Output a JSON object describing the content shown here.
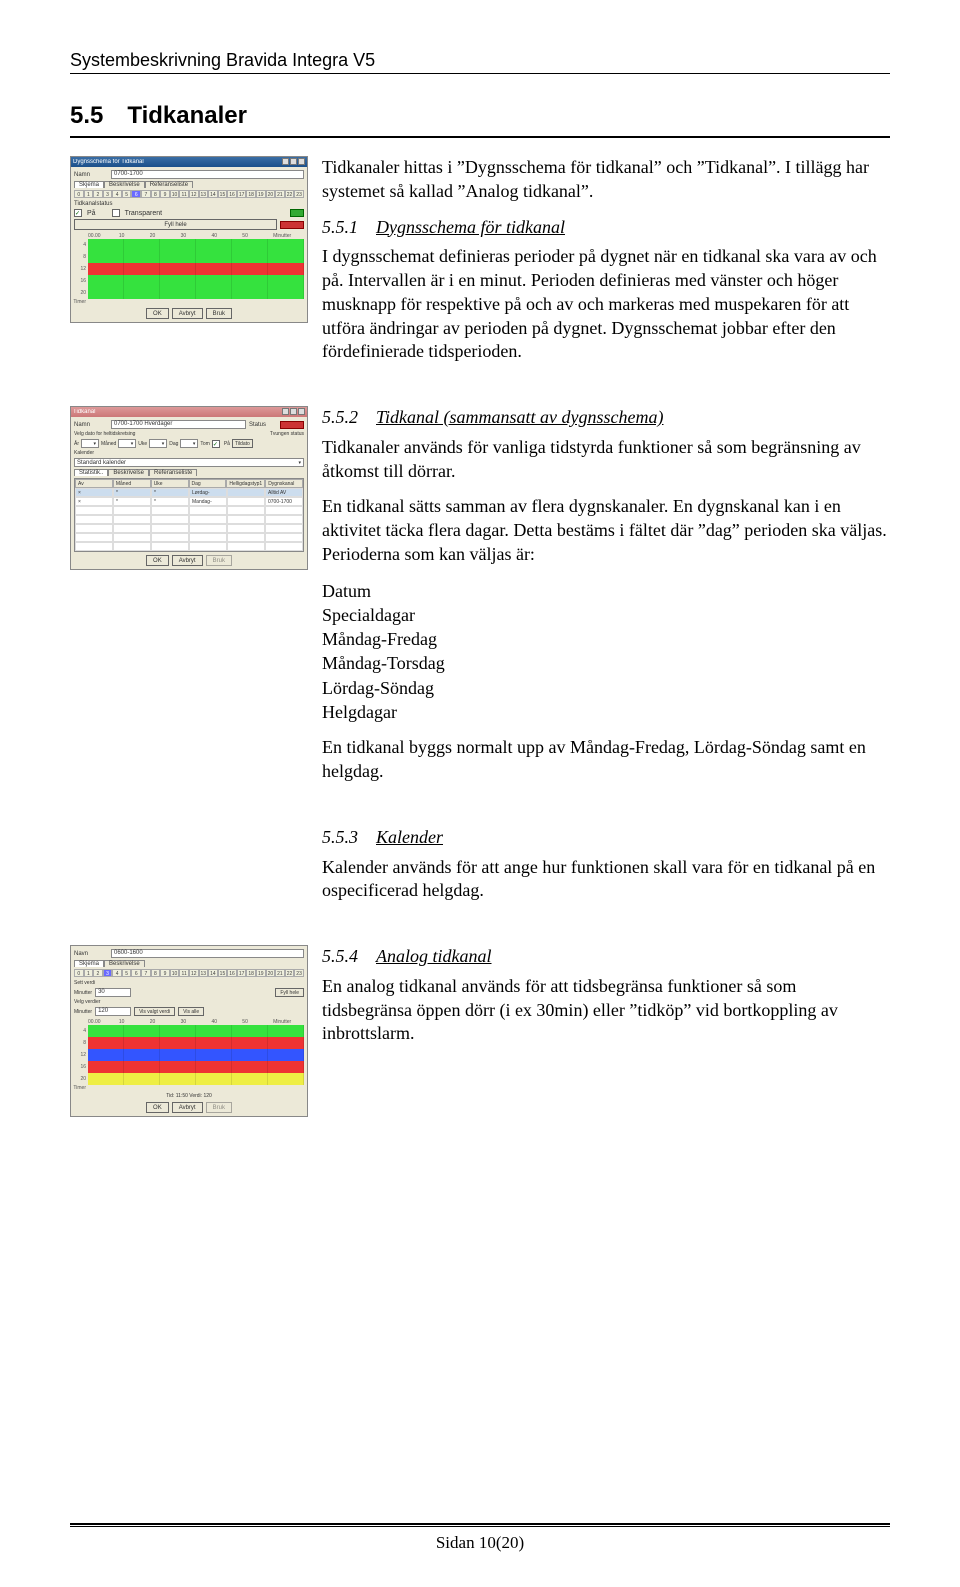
{
  "doc_header": "Systembeskrivning Bravida Integra V5",
  "page_footer": "Sidan 10(20)",
  "section": {
    "num": "5.5",
    "title": "Tidkanaler"
  },
  "intro_p1": "Tidkanaler hittas i ”Dygnsschema för tidkanal” och ”Tidkanal”. I tillägg har systemet så kallad ”Analog tidkanal”.",
  "s551": {
    "num": "5.5.1",
    "title": "Dygnsschema för tidkanal",
    "p1": "I dygnsschemat definieras perioder på dygnet när en tidkanal ska vara av och på. Intervallen är i en minut. Perioden definieras med vänster och höger musknapp för respektive på och av och markeras med muspekaren för att utföra ändringar av perioden på dygnet. Dygnsschemat jobbar efter den fördefinierade tidsperioden."
  },
  "s552": {
    "num": "5.5.2",
    "title": "Tidkanal (sammansatt av dygnsschema)",
    "p1": "Tidkanaler används för vanliga tidstyrda funktioner så som begränsning av åtkomst till dörrar.",
    "p2": "En tidkanal sätts samman av flera dygnskanaler. En dygnskanal kan i en aktivitet täcka flera dagar. Detta bestäms i fältet där ”dag” perioden ska väljas. Perioderna som kan väljas är:",
    "list": [
      "Datum",
      "Specialdagar",
      "Måndag-Fredag",
      "Måndag-Torsdag",
      "Lördag-Söndag",
      "Helgdagar"
    ],
    "p3": "En tidkanal byggs normalt upp av Måndag-Fredag, Lördag-Söndag samt en helgdag."
  },
  "s553": {
    "num": "5.5.3",
    "title": "Kalender",
    "p1": "Kalender används för att ange hur funktionen skall vara för en tidkanal på en ospecificerad helgdag."
  },
  "s554": {
    "num": "5.5.4",
    "title": "Analog tidkanal",
    "p1": "En analog tidkanal används för att tidsbegränsa funktioner så som tidsbegränsa öppen dörr (i ex 30min) eller ”tidköp” vid bortkoppling av inbrottslarm."
  },
  "thumb1": {
    "window_title": "Dygnsschema för Tidkanal",
    "namn_lbl": "Namn",
    "namn_val": "0700-1700",
    "tab_skjema": "Skjema",
    "tab_besk": "Beskrivelse",
    "tab_ref": "Referanseliste",
    "hours": [
      "0",
      "1",
      "2",
      "3",
      "4",
      "5",
      "6",
      "7",
      "8",
      "9",
      "10",
      "11",
      "12",
      "13",
      "14",
      "15",
      "16",
      "17",
      "18",
      "19",
      "20",
      "21",
      "22",
      "23"
    ],
    "pa": "På",
    "transparent": "Transparent",
    "fyll": "Fyll hele",
    "axis": [
      "00.00",
      "10",
      "20",
      "30",
      "40",
      "50",
      "Minutter"
    ],
    "rows": [
      "4",
      "8",
      "12",
      "16",
      "20"
    ],
    "row_colors": [
      "cg-green",
      "cg-green",
      "cg-red",
      "cg-green",
      "cg-green"
    ],
    "ok": "OK",
    "avbryt": "Avbryt",
    "bruk": "Bruk"
  },
  "thumb2": {
    "window_title": "Tidkanal",
    "namn_lbl": "Namn",
    "namn_val": "0700-1700 Hverdager",
    "status_lbl": "Status",
    "velg": "Velg dato for heltidskretsing",
    "tvungen": "Tvungen status",
    "ar": "År",
    "maned": "Måned",
    "uke": "Uke",
    "dag": "Dag",
    "tom": "Tom",
    "tildato": "Tildato",
    "kalender": "Kalender",
    "standard": "Standard kalender",
    "tab_stat": "Statistik..",
    "tab_besk": "Beskrivelse",
    "tab_ref": "Referanseliste",
    "hdrs": [
      "Av",
      "Måned",
      "Uke",
      "Dag",
      "Helligdagstyp1",
      "Dygnskanal ID"
    ],
    "r1": [
      "×",
      "*",
      "*",
      "Lørdag-Søndag",
      "",
      "Alltid AV"
    ],
    "r2": [
      "×",
      "*",
      "*",
      "Mandag-Fredag",
      "",
      "0700-1700"
    ],
    "ok": "OK",
    "avbryt": "Avbryt"
  },
  "thumb3": {
    "namn_lbl": "Navn",
    "namn_val": "0600-1600",
    "tab_skjema": "Skjema",
    "tab_besk": "Beskrivelse",
    "hours": [
      "0",
      "1",
      "2",
      "3",
      "4",
      "5",
      "6",
      "7",
      "8",
      "9",
      "10",
      "11",
      "12",
      "13",
      "14",
      "15",
      "16",
      "17",
      "18",
      "19",
      "20",
      "21",
      "22",
      "23"
    ],
    "sett_lbl": "Sett verdi",
    "min1_lbl": "Minutter",
    "min1_val": "30",
    "fyll": "Fyll hele",
    "velg_lbl": "Velg verdier",
    "min2_val": "120",
    "vis_valgt": "Vis valgt verdi",
    "vis_alle": "Vis alle",
    "axis": [
      "00.00",
      "10",
      "20",
      "30",
      "40",
      "50",
      "Minutter"
    ],
    "rows": [
      "4",
      "8",
      "12",
      "16",
      "20"
    ],
    "stripe_colors": [
      "cg-green",
      "cg-red",
      "cg-blue",
      "cg-red",
      "cg-yellow"
    ],
    "tid_lbl": "Tid: 11:50   Verdi:  120",
    "ok": "OK",
    "avbryt": "Avbryt",
    "bruk": "Bruk"
  }
}
